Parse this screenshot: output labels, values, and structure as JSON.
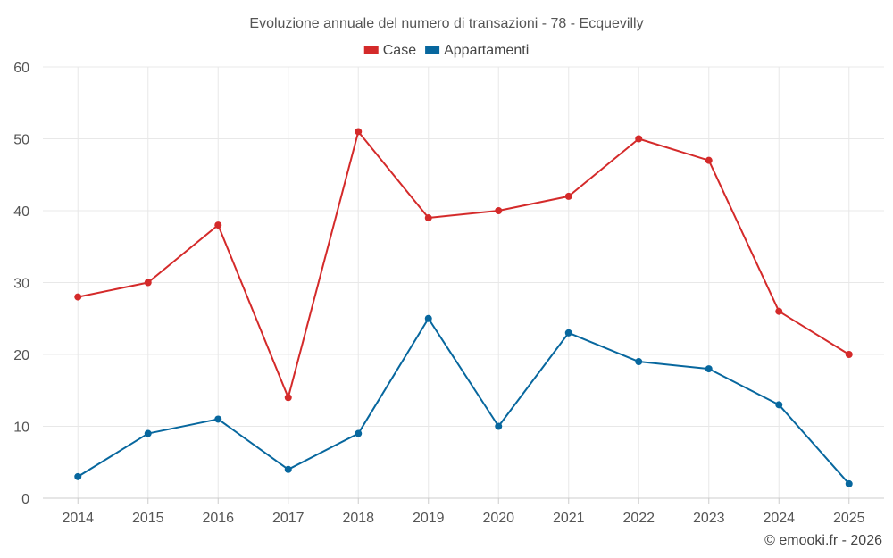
{
  "chart_data": {
    "type": "line",
    "title": "Evoluzione annuale del numero di transazioni - 78 - Ecquevilly",
    "categories": [
      "2014",
      "2015",
      "2016",
      "2017",
      "2018",
      "2019",
      "2020",
      "2021",
      "2022",
      "2023",
      "2024",
      "2025"
    ],
    "series": [
      {
        "name": "Case",
        "color": "#d42a2a",
        "values": [
          28,
          30,
          38,
          14,
          51,
          39,
          40,
          42,
          50,
          47,
          26,
          20
        ]
      },
      {
        "name": "Appartamenti",
        "color": "#07679e",
        "values": [
          3,
          9,
          11,
          4,
          9,
          25,
          10,
          23,
          19,
          18,
          13,
          2
        ]
      }
    ],
    "ylim": [
      0,
      60
    ],
    "yticks": [
      0,
      10,
      20,
      30,
      40,
      50,
      60
    ],
    "grid": true,
    "legend": "top-center",
    "xlabel": "",
    "ylabel": ""
  },
  "credit": "© emooki.fr - 2026"
}
